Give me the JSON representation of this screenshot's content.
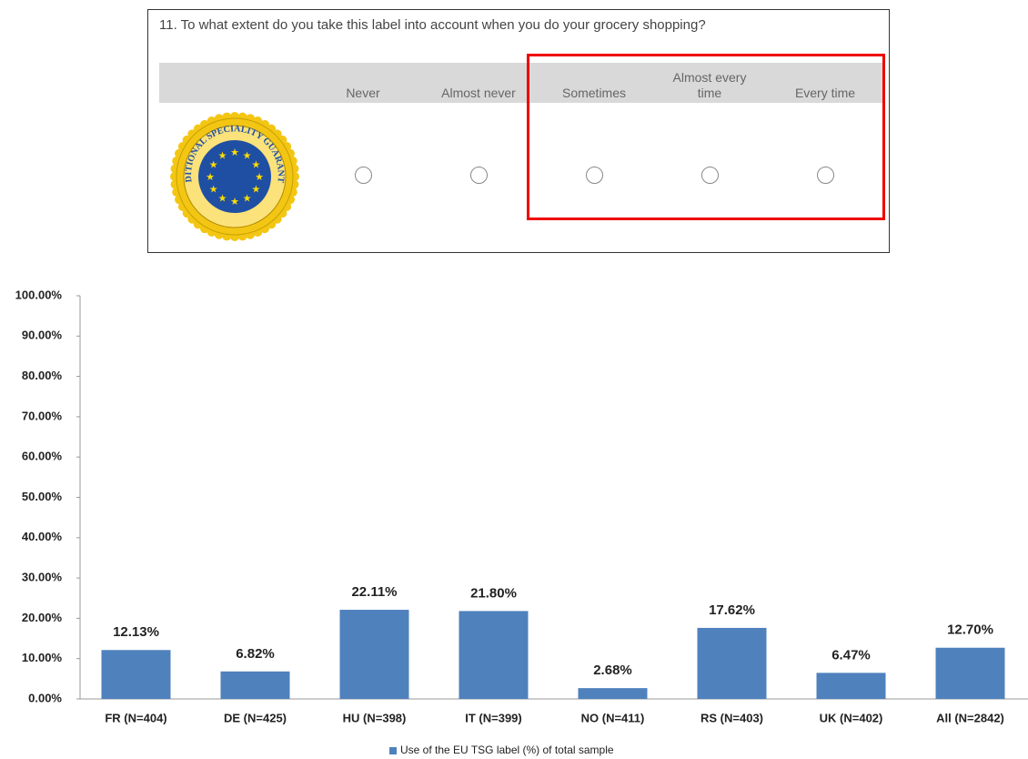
{
  "survey": {
    "question": "11. To what extent do you take this label into account when you do your grocery shopping?",
    "options": [
      "Never",
      "Almost never",
      "Sometimes",
      "Almost every time",
      "Every time"
    ],
    "logo_text": "TRADITIONAL SPECIALITY GUARANTEED"
  },
  "chart_data": {
    "type": "bar",
    "categories": [
      "FR (N=404)",
      "DE (N=425)",
      "HU (N=398)",
      "IT (N=399)",
      "NO (N=411)",
      "RS (N=403)",
      "UK (N=402)",
      "All (N=2842)"
    ],
    "series": [
      {
        "name": "Use of the EU TSG label (%) of total sample",
        "color": "#4f81bd",
        "values": [
          12.13,
          6.82,
          22.11,
          21.8,
          2.68,
          17.62,
          6.47,
          12.7
        ],
        "value_labels": [
          "12.13%",
          "6.82%",
          "22.11%",
          "21.80%",
          "2.68%",
          "17.62%",
          "6.47%",
          "12.70%"
        ]
      }
    ],
    "ylim": [
      0,
      100
    ],
    "yticks": [
      {
        "value": 0,
        "label": "0.00%"
      },
      {
        "value": 10,
        "label": "10.00%"
      },
      {
        "value": 20,
        "label": "20.00%"
      },
      {
        "value": 30,
        "label": "30.00%"
      },
      {
        "value": 40,
        "label": "40.00%"
      },
      {
        "value": 50,
        "label": "50.00%"
      },
      {
        "value": 60,
        "label": "60.00%"
      },
      {
        "value": 70,
        "label": "70.00%"
      },
      {
        "value": 80,
        "label": "80.00%"
      },
      {
        "value": 90,
        "label": "90.00%"
      },
      {
        "value": 100,
        "label": "100.00%"
      }
    ],
    "grid": false,
    "legend": "bottom"
  }
}
